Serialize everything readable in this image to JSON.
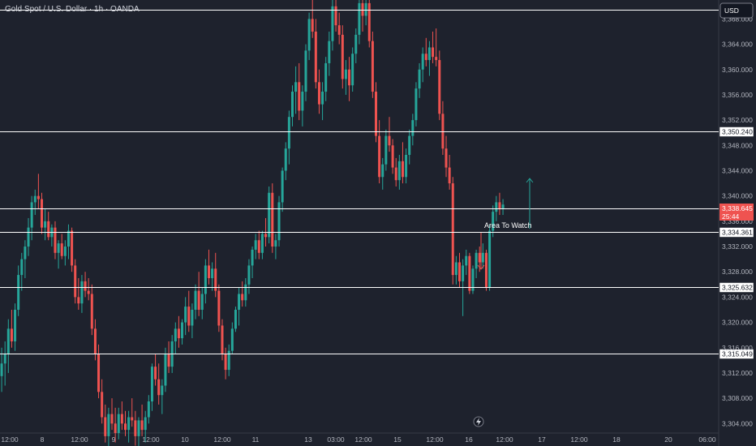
{
  "header": {
    "title": "Gold Spot / U.S. Dollar · 1h · OANDA",
    "currency": "USD"
  },
  "colors": {
    "background": "#1e222d",
    "bull": "#26a69a",
    "bear": "#ef5350",
    "level_line": "#ffffff",
    "axis_text": "#b2b5be"
  },
  "chart_data": {
    "type": "candlestick",
    "title": "Gold Spot / U.S. Dollar · 1h · OANDA",
    "y_axis_position": "right",
    "ylim": [
      3302.5,
      3371.0
    ],
    "y_ticks": [
      "3,368.000",
      "3,364.000",
      "3,360.000",
      "3,356.000",
      "3,352.000",
      "3,348.000",
      "3,344.000",
      "3,340.000",
      "3,336.000",
      "3,332.000",
      "3,328.000",
      "3,324.000",
      "3,320.000",
      "3,316.000",
      "3,312.000",
      "3,308.000",
      "3,304.000"
    ],
    "x_labels": [
      "12:00",
      "8",
      "12:00",
      "9",
      "12:00",
      "10",
      "12:00",
      "11",
      "13",
      "03:00",
      "12:00",
      "15",
      "12:00",
      "16",
      "12:00",
      "17",
      "12:00",
      "18",
      "20",
      "06:00"
    ],
    "horizontal_levels": [
      {
        "label": "",
        "value": 3369.5
      },
      {
        "label": "3,350.240",
        "value": 3350.24
      },
      {
        "label": "3,338.095",
        "value": 3338.095
      },
      {
        "label": "3,334.361",
        "value": 3334.361
      },
      {
        "label": "3,325.632",
        "value": 3325.632
      },
      {
        "label": "3,315.049",
        "value": 3315.049
      }
    ],
    "current_price": {
      "label": "3,338.645",
      "countdown": "25:44",
      "value": 3338.645
    },
    "annotation": "Area To Watch",
    "candles": [
      [
        3311.5,
        3316.0,
        3309.0,
        3313.5
      ],
      [
        3313.5,
        3317.0,
        3310.0,
        3315.0
      ],
      [
        3315.0,
        3320.5,
        3312.0,
        3319.0
      ],
      [
        3319.0,
        3322.0,
        3316.0,
        3317.0
      ],
      [
        3317.0,
        3323.0,
        3315.5,
        3322.0
      ],
      [
        3322.0,
        3329.0,
        3321.0,
        3327.5
      ],
      [
        3327.5,
        3331.0,
        3325.0,
        3330.0
      ],
      [
        3330.0,
        3333.0,
        3327.0,
        3332.0
      ],
      [
        3332.0,
        3336.5,
        3330.5,
        3335.0
      ],
      [
        3335.0,
        3340.0,
        3333.0,
        3339.0
      ],
      [
        3339.0,
        3341.0,
        3337.0,
        3340.0
      ],
      [
        3340.0,
        3343.5,
        3338.0,
        3339.5
      ],
      [
        3339.5,
        3340.5,
        3334.0,
        3335.0
      ],
      [
        3335.0,
        3338.0,
        3333.0,
        3336.0
      ],
      [
        3336.0,
        3337.5,
        3333.0,
        3333.5
      ],
      [
        3333.5,
        3335.5,
        3332.0,
        3335.0
      ],
      [
        3335.0,
        3336.0,
        3330.0,
        3331.0
      ],
      [
        3331.0,
        3333.0,
        3328.5,
        3332.5
      ],
      [
        3332.5,
        3334.0,
        3330.0,
        3330.5
      ],
      [
        3330.5,
        3333.0,
        3329.0,
        3332.0
      ],
      [
        3332.0,
        3335.5,
        3330.0,
        3334.5
      ],
      [
        3334.5,
        3335.0,
        3328.0,
        3329.0
      ],
      [
        3329.0,
        3330.0,
        3323.0,
        3324.0
      ],
      [
        3324.0,
        3327.0,
        3322.0,
        3323.0
      ],
      [
        3323.0,
        3327.5,
        3321.5,
        3326.5
      ],
      [
        3326.5,
        3328.0,
        3324.0,
        3325.0
      ],
      [
        3325.0,
        3327.0,
        3323.5,
        3324.5
      ],
      [
        3324.5,
        3326.0,
        3318.0,
        3319.0
      ],
      [
        3319.0,
        3320.5,
        3314.0,
        3315.0
      ],
      [
        3315.0,
        3316.5,
        3308.0,
        3309.0
      ],
      [
        3309.0,
        3311.0,
        3304.0,
        3305.0
      ],
      [
        3305.0,
        3307.0,
        3301.0,
        3302.0
      ],
      [
        3302.0,
        3306.5,
        3300.0,
        3305.5
      ],
      [
        3305.5,
        3308.0,
        3303.0,
        3304.0
      ],
      [
        3304.0,
        3306.5,
        3301.0,
        3302.5
      ],
      [
        3302.5,
        3306.5,
        3301.5,
        3305.5
      ],
      [
        3305.5,
        3307.5,
        3303.0,
        3304.0
      ],
      [
        3304.0,
        3306.0,
        3302.0,
        3303.0
      ],
      [
        3303.0,
        3306.0,
        3301.0,
        3305.0
      ],
      [
        3305.0,
        3308.0,
        3303.5,
        3304.5
      ],
      [
        3304.5,
        3306.0,
        3300.5,
        3302.0
      ],
      [
        3302.0,
        3305.0,
        3300.0,
        3304.5
      ],
      [
        3304.5,
        3307.0,
        3302.0,
        3303.0
      ],
      [
        3303.0,
        3306.0,
        3301.0,
        3305.0
      ],
      [
        3305.0,
        3308.5,
        3304.0,
        3307.5
      ],
      [
        3307.5,
        3313.5,
        3306.0,
        3313.0
      ],
      [
        3313.0,
        3315.0,
        3310.0,
        3311.0
      ],
      [
        3311.0,
        3313.5,
        3307.0,
        3308.5
      ],
      [
        3308.5,
        3311.0,
        3305.5,
        3310.0
      ],
      [
        3310.0,
        3316.0,
        3309.0,
        3315.0
      ],
      [
        3315.0,
        3317.0,
        3312.0,
        3313.0
      ],
      [
        3313.0,
        3318.0,
        3312.0,
        3317.0
      ],
      [
        3317.0,
        3320.0,
        3315.0,
        3319.0
      ],
      [
        3319.0,
        3321.0,
        3316.0,
        3317.5
      ],
      [
        3317.5,
        3320.5,
        3316.5,
        3320.0
      ],
      [
        3320.0,
        3324.0,
        3318.0,
        3322.5
      ],
      [
        3322.5,
        3325.0,
        3318.5,
        3319.5
      ],
      [
        3319.5,
        3323.0,
        3317.5,
        3322.0
      ],
      [
        3322.0,
        3326.0,
        3320.5,
        3325.0
      ],
      [
        3325.0,
        3328.0,
        3321.0,
        3322.0
      ],
      [
        3322.0,
        3325.5,
        3320.5,
        3324.5
      ],
      [
        3324.5,
        3330.0,
        3323.0,
        3329.0
      ],
      [
        3329.0,
        3331.5,
        3326.0,
        3327.0
      ],
      [
        3327.0,
        3329.5,
        3325.0,
        3328.5
      ],
      [
        3328.5,
        3331.0,
        3324.0,
        3325.0
      ],
      [
        3325.0,
        3326.0,
        3318.5,
        3319.5
      ],
      [
        3319.5,
        3320.5,
        3314.0,
        3315.0
      ],
      [
        3315.0,
        3316.0,
        3311.0,
        3312.5
      ],
      [
        3312.5,
        3316.5,
        3311.5,
        3315.5
      ],
      [
        3315.5,
        3320.0,
        3315.0,
        3319.0
      ],
      [
        3319.0,
        3322.5,
        3318.5,
        3322.0
      ],
      [
        3322.0,
        3325.5,
        3319.5,
        3324.5
      ],
      [
        3324.5,
        3326.5,
        3322.5,
        3323.5
      ],
      [
        3323.5,
        3327.0,
        3322.5,
        3326.0
      ],
      [
        3326.0,
        3330.0,
        3324.5,
        3329.0
      ],
      [
        3329.0,
        3332.0,
        3327.0,
        3331.5
      ],
      [
        3331.5,
        3334.0,
        3330.0,
        3333.0
      ],
      [
        3333.0,
        3334.5,
        3330.0,
        3331.0
      ],
      [
        3331.0,
        3334.5,
        3330.0,
        3334.0
      ],
      [
        3334.0,
        3336.5,
        3332.0,
        3333.5
      ],
      [
        3333.5,
        3341.5,
        3332.5,
        3340.5
      ],
      [
        3340.5,
        3342.0,
        3331.0,
        3332.0
      ],
      [
        3332.0,
        3334.0,
        3330.0,
        3333.0
      ],
      [
        3333.0,
        3340.0,
        3332.0,
        3339.0
      ],
      [
        3339.0,
        3344.5,
        3337.5,
        3344.0
      ],
      [
        3344.0,
        3348.5,
        3342.5,
        3347.5
      ],
      [
        3347.5,
        3353.5,
        3345.0,
        3352.5
      ],
      [
        3352.5,
        3357.5,
        3351.0,
        3356.5
      ],
      [
        3356.5,
        3360.5,
        3353.0,
        3358.0
      ],
      [
        3358.0,
        3361.0,
        3352.0,
        3353.5
      ],
      [
        3353.5,
        3357.5,
        3351.0,
        3356.5
      ],
      [
        3356.5,
        3364.0,
        3355.0,
        3363.0
      ],
      [
        3363.0,
        3369.0,
        3361.5,
        3368.0
      ],
      [
        3368.0,
        3372.0,
        3365.0,
        3366.0
      ],
      [
        3366.0,
        3368.0,
        3357.0,
        3358.0
      ],
      [
        3358.0,
        3360.0,
        3353.0,
        3354.5
      ],
      [
        3354.5,
        3358.0,
        3352.0,
        3356.5
      ],
      [
        3356.5,
        3362.0,
        3355.0,
        3361.0
      ],
      [
        3361.0,
        3366.0,
        3359.0,
        3364.5
      ],
      [
        3364.5,
        3371.0,
        3363.0,
        3370.0
      ],
      [
        3370.0,
        3371.5,
        3366.0,
        3367.0
      ],
      [
        3367.0,
        3369.0,
        3364.0,
        3365.5
      ],
      [
        3365.5,
        3367.0,
        3357.0,
        3358.5
      ],
      [
        3358.5,
        3361.5,
        3356.0,
        3360.0
      ],
      [
        3360.0,
        3362.0,
        3355.0,
        3357.5
      ],
      [
        3357.5,
        3363.5,
        3356.5,
        3362.5
      ],
      [
        3362.5,
        3366.5,
        3361.0,
        3365.5
      ],
      [
        3365.5,
        3371.5,
        3364.0,
        3370.5
      ],
      [
        3370.5,
        3372.0,
        3366.0,
        3368.5
      ],
      [
        3368.5,
        3371.5,
        3367.0,
        3370.5
      ],
      [
        3370.5,
        3372.0,
        3363.5,
        3364.5
      ],
      [
        3364.5,
        3366.0,
        3355.5,
        3356.5
      ],
      [
        3356.5,
        3358.0,
        3348.5,
        3349.5
      ],
      [
        3349.5,
        3352.0,
        3342.0,
        3343.0
      ],
      [
        3343.0,
        3346.0,
        3341.0,
        3345.0
      ],
      [
        3345.0,
        3350.5,
        3344.0,
        3349.5
      ],
      [
        3349.5,
        3352.5,
        3347.0,
        3348.0
      ],
      [
        3348.0,
        3349.0,
        3343.5,
        3344.5
      ],
      [
        3344.5,
        3346.0,
        3341.5,
        3342.5
      ],
      [
        3342.5,
        3346.5,
        3341.0,
        3345.5
      ],
      [
        3345.5,
        3348.5,
        3342.0,
        3343.0
      ],
      [
        3343.0,
        3347.5,
        3342.0,
        3346.5
      ],
      [
        3346.5,
        3350.5,
        3345.0,
        3349.5
      ],
      [
        3349.5,
        3353.0,
        3348.0,
        3352.0
      ],
      [
        3352.0,
        3358.0,
        3351.0,
        3357.0
      ],
      [
        3357.0,
        3361.0,
        3355.5,
        3360.0
      ],
      [
        3360.0,
        3363.5,
        3358.0,
        3362.5
      ],
      [
        3362.5,
        3365.0,
        3360.5,
        3361.5
      ],
      [
        3361.5,
        3364.5,
        3359.0,
        3363.5
      ],
      [
        3363.5,
        3366.0,
        3361.0,
        3362.0
      ],
      [
        3362.0,
        3366.5,
        3360.5,
        3361.5
      ],
      [
        3361.5,
        3363.0,
        3352.0,
        3353.0
      ],
      [
        3353.0,
        3355.0,
        3346.5,
        3347.5
      ],
      [
        3347.5,
        3349.5,
        3343.0,
        3344.5
      ],
      [
        3344.5,
        3346.5,
        3341.0,
        3342.0
      ],
      [
        3342.0,
        3343.0,
        3326.0,
        3327.5
      ],
      [
        3327.5,
        3330.5,
        3326.0,
        3329.5
      ],
      [
        3329.5,
        3331.0,
        3325.5,
        3326.5
      ],
      [
        3326.5,
        3330.0,
        3321.0,
        3329.0
      ],
      [
        3329.0,
        3331.5,
        3327.5,
        3330.5
      ],
      [
        3330.5,
        3331.0,
        3324.5,
        3325.0
      ],
      [
        3325.0,
        3329.0,
        3324.5,
        3328.5
      ],
      [
        3328.5,
        3331.5,
        3327.0,
        3331.0
      ],
      [
        3331.0,
        3332.0,
        3328.0,
        3329.5
      ],
      [
        3329.5,
        3332.5,
        3328.5,
        3331.0
      ],
      [
        3331.0,
        3331.5,
        3325.0,
        3325.5
      ],
      [
        3325.5,
        3335.5,
        3325.0,
        3334.5
      ],
      [
        3334.5,
        3338.5,
        3333.5,
        3337.5
      ],
      [
        3337.5,
        3340.0,
        3336.0,
        3339.0
      ],
      [
        3339.0,
        3340.5,
        3337.0,
        3338.0
      ],
      [
        3338.0,
        3339.5,
        3337.0,
        3338.645
      ]
    ]
  }
}
